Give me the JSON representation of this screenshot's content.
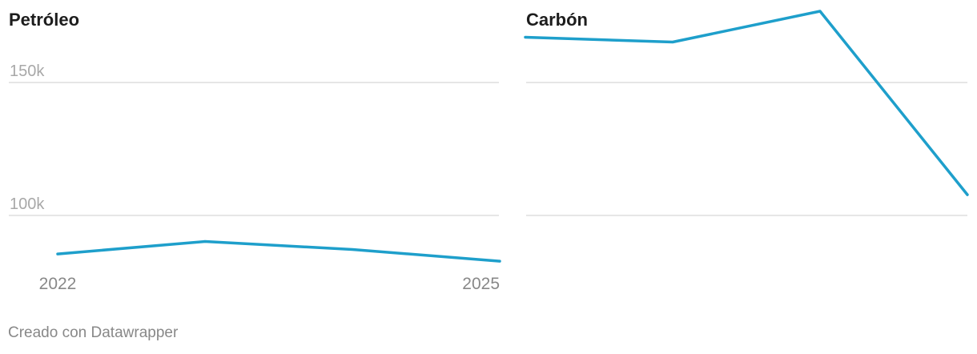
{
  "footer": "Creado con Datawrapper",
  "colors": {
    "line": "#1e9fcb",
    "grid": "#dddddd",
    "tick_text": "#a8a8a8",
    "x_text": "#888888"
  },
  "chart_data": [
    {
      "type": "line",
      "title": "Petróleo",
      "x": [
        2022,
        2023,
        2024,
        2025
      ],
      "x_tick_labels": [
        "2022",
        "2025"
      ],
      "y_tick_labels": [
        "150k",
        "100k"
      ],
      "y_ticks": [
        150000,
        100000
      ],
      "ylim": [
        78000,
        178000
      ],
      "series": [
        {
          "values": [
            85500,
            90200,
            87200,
            82800
          ]
        }
      ],
      "grid": true
    },
    {
      "type": "line",
      "title": "Carbón",
      "x": [
        2022,
        2023,
        2024,
        2025
      ],
      "y_ticks": [
        150000,
        100000
      ],
      "ylim": [
        78000,
        178000
      ],
      "series": [
        {
          "values": [
            167000,
            165200,
            176800,
            107800
          ]
        }
      ],
      "grid": true
    }
  ]
}
